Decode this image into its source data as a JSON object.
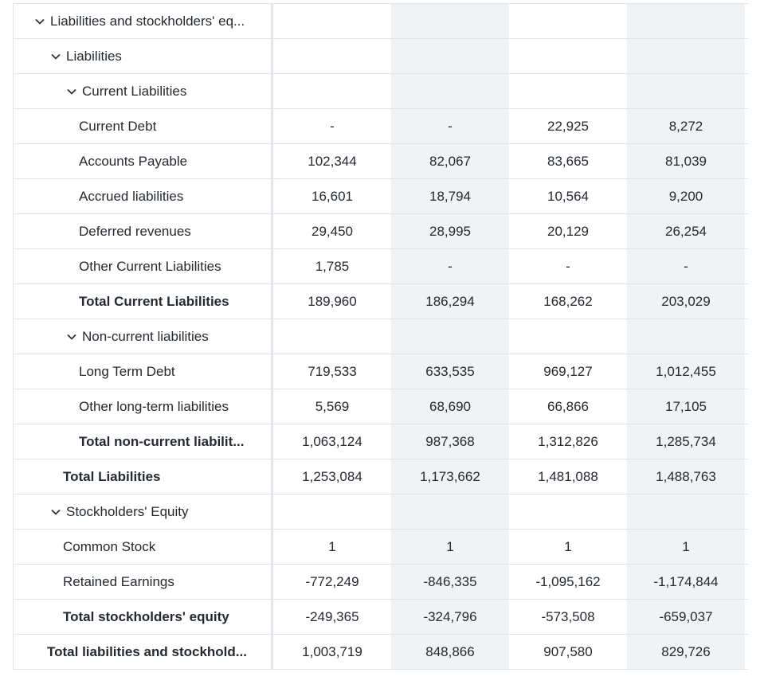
{
  "rows": [
    {
      "label": "Liabilities and stockholders' eq...",
      "values": [
        "",
        "",
        "",
        ""
      ]
    },
    {
      "label": "Liabilities",
      "values": [
        "",
        "",
        "",
        ""
      ]
    },
    {
      "label": "Current Liabilities",
      "values": [
        "",
        "",
        "",
        ""
      ]
    },
    {
      "label": "Current Debt",
      "values": [
        "-",
        "-",
        "22,925",
        "8,272"
      ]
    },
    {
      "label": "Accounts Payable",
      "values": [
        "102,344",
        "82,067",
        "83,665",
        "81,039"
      ]
    },
    {
      "label": "Accrued liabilities",
      "values": [
        "16,601",
        "18,794",
        "10,564",
        "9,200"
      ]
    },
    {
      "label": "Deferred revenues",
      "values": [
        "29,450",
        "28,995",
        "20,129",
        "26,254"
      ]
    },
    {
      "label": "Other Current Liabilities",
      "values": [
        "1,785",
        "-",
        "-",
        "-"
      ]
    },
    {
      "label": "Total Current Liabilities",
      "values": [
        "189,960",
        "186,294",
        "168,262",
        "203,029"
      ]
    },
    {
      "label": "Non-current liabilities",
      "values": [
        "",
        "",
        "",
        ""
      ]
    },
    {
      "label": "Long Term Debt",
      "values": [
        "719,533",
        "633,535",
        "969,127",
        "1,012,455"
      ]
    },
    {
      "label": "Other long-term liabilities",
      "values": [
        "5,569",
        "68,690",
        "66,866",
        "17,105"
      ]
    },
    {
      "label": "Total non-current liabilit...",
      "values": [
        "1,063,124",
        "987,368",
        "1,312,826",
        "1,285,734"
      ]
    },
    {
      "label": "Total Liabilities",
      "values": [
        "1,253,084",
        "1,173,662",
        "1,481,088",
        "1,488,763"
      ]
    },
    {
      "label": "Stockholders' Equity",
      "values": [
        "",
        "",
        "",
        ""
      ]
    },
    {
      "label": "Common Stock",
      "values": [
        "1",
        "1",
        "1",
        "1"
      ]
    },
    {
      "label": "Retained Earnings",
      "values": [
        "-772,249",
        "-846,335",
        "-1,095,162",
        "-1,174,844"
      ]
    },
    {
      "label": "Total stockholders' equity",
      "values": [
        "-249,365",
        "-324,796",
        "-573,508",
        "-659,037"
      ]
    },
    {
      "label": "Total liabilities and stockhold...",
      "values": [
        "1,003,719",
        "848,866",
        "907,580",
        "829,726"
      ]
    }
  ]
}
